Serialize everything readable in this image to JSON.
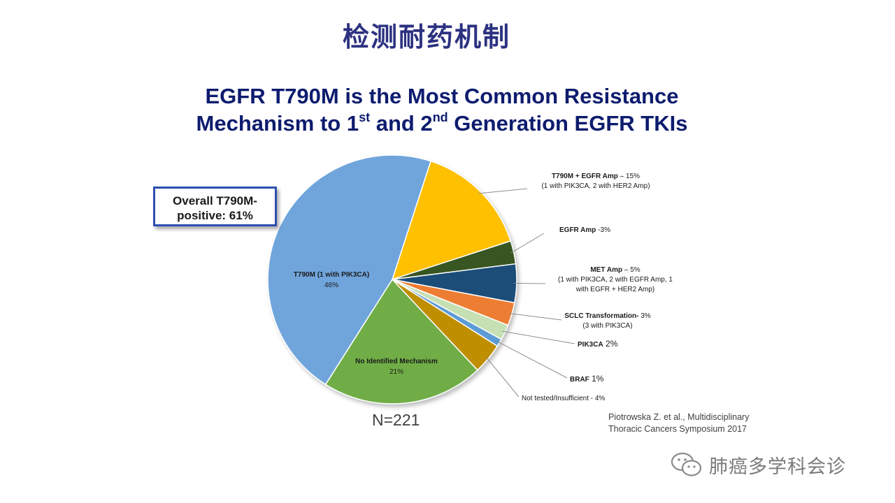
{
  "page_title": "检测耐药机制",
  "slide_title": {
    "line1": "EGFR T790M is the Most Common Resistance",
    "line2_a": "Mechanism to 1",
    "line2_sup1": "st",
    "line2_b": " and 2",
    "line2_sup2": "nd",
    "line2_c": " Generation EGFR TKIs"
  },
  "callout": {
    "line1": "Overall T790M-",
    "line2": "positive: 61%"
  },
  "n_label": "N=221",
  "citation": {
    "line1": "Piotrowska Z. et al., Multidisciplinary",
    "line2": "Thoracic Cancers Symposium 2017"
  },
  "watermark": {
    "text": "肺癌多学科会诊",
    "icon": "wechat-icon"
  },
  "chart_data": {
    "type": "pie",
    "start_angle_deg": 18,
    "direction": "clockwise",
    "slices": [
      {
        "key": "t790m_egfr_amp",
        "value": 15,
        "color": "#ffc000",
        "label_bold": "T790M + EGFR Amp",
        "label_normal": " – 15%",
        "sublines": [
          "(1 with PIK3CA, 2 with HER2 Amp)"
        ]
      },
      {
        "key": "egfr_amp",
        "value": 3,
        "color": "#375623",
        "label_bold": "EGFR Amp",
        "label_normal": " -3%",
        "sublines": []
      },
      {
        "key": "met_amp",
        "value": 5,
        "color": "#1f4e79",
        "label_bold": "MET Amp",
        "label_normal": " – 5%",
        "sublines": [
          "(1 with PIK3CA, 2 with EGFR Amp, 1",
          "with EGFR + HER2 Amp)"
        ]
      },
      {
        "key": "sclc",
        "value": 3,
        "color": "#ed7d31",
        "label_bold": "SCLC Transformation-",
        "label_normal": " 3%",
        "sublines": [
          "(3 with PIK3CA)"
        ]
      },
      {
        "key": "pik3ca",
        "value": 2,
        "color": "#c6e0b4",
        "label_bold": "PIK3CA",
        "label_normal": "  2%",
        "sublines": []
      },
      {
        "key": "braf",
        "value": 1,
        "color": "#5b9bd5",
        "label_bold": "BRAF",
        "label_normal": "  1%",
        "sublines": []
      },
      {
        "key": "not_tested",
        "value": 4,
        "color": "#bf8f00",
        "label_bold": "",
        "label_normal": "Not tested/Insufficient - 4%",
        "sublines": []
      },
      {
        "key": "no_identified",
        "value": 21,
        "color": "#70ad47",
        "inside_label": "No Identified Mechanism",
        "inside_value": "21%"
      },
      {
        "key": "t790m",
        "value": 46,
        "color": "#6fa5dc",
        "inside_label": "T790M (1 with PIK3CA)",
        "inside_value": "46%"
      }
    ]
  }
}
